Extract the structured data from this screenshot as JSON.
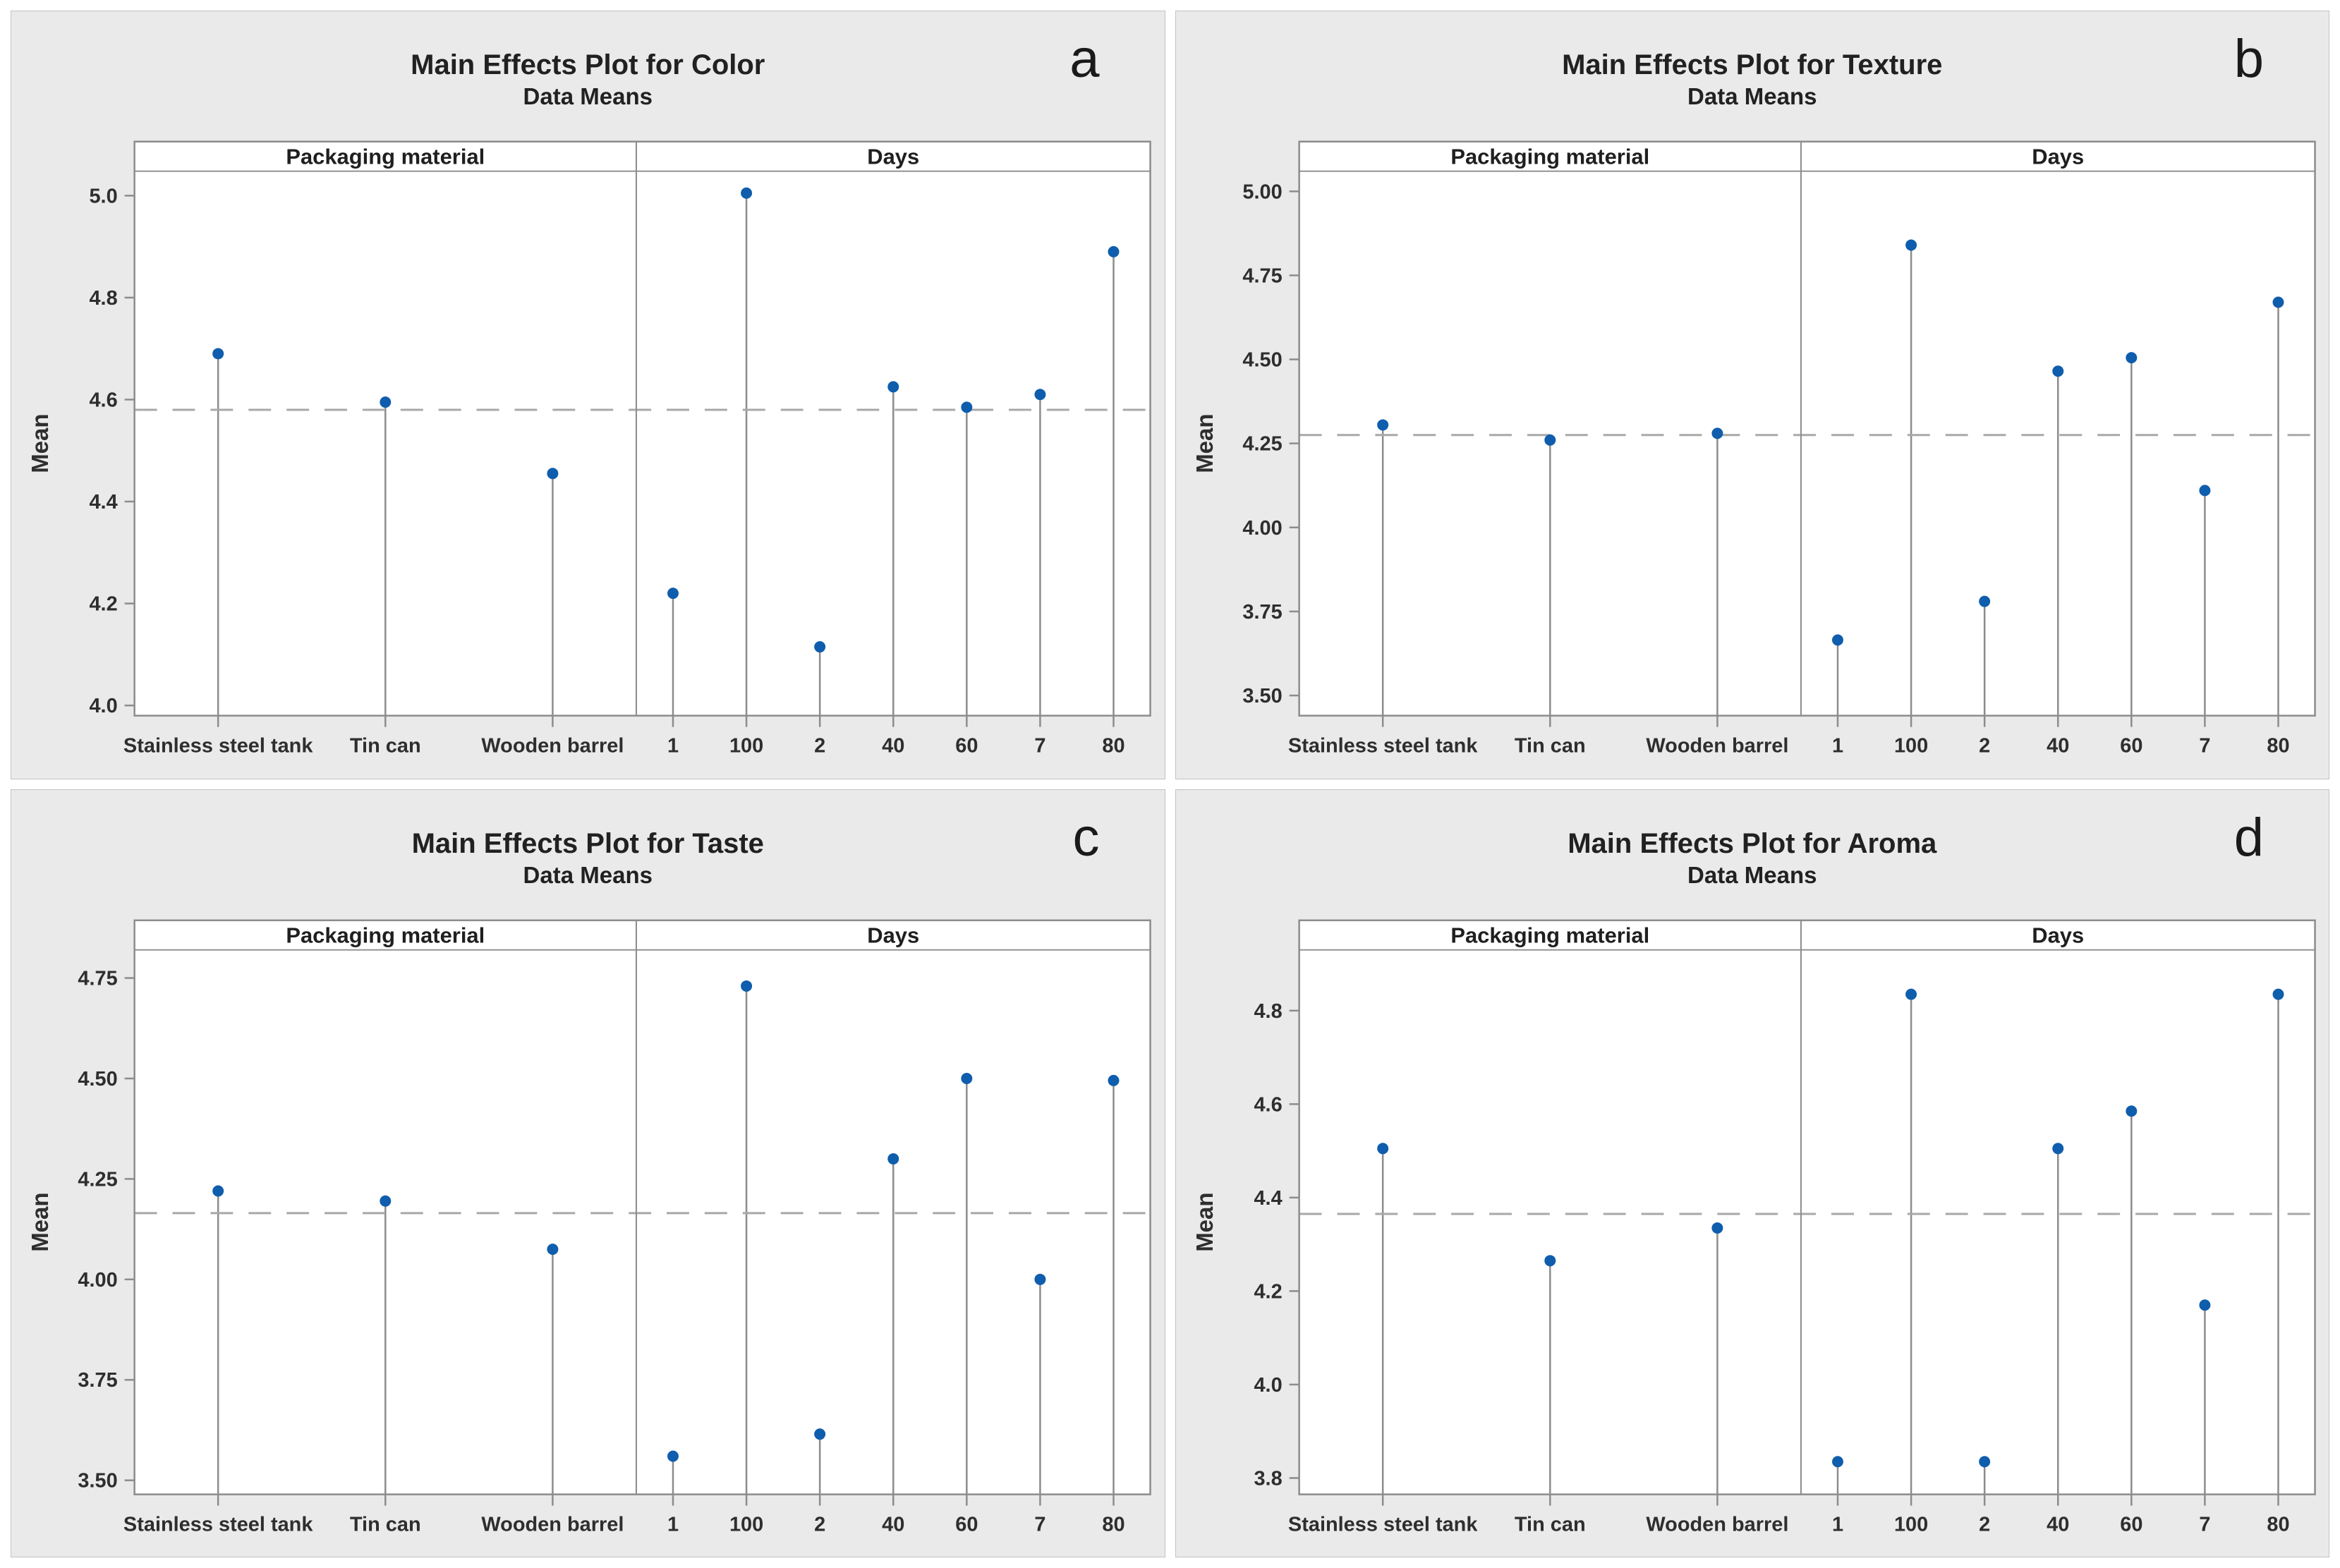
{
  "figure": {
    "description": "Main effects plots (data means) for sensory attributes by packaging material and storage days",
    "ylabel": "Mean",
    "panel_headers": [
      "Packaging material",
      "Days"
    ],
    "packaging_categories": [
      "Stainless steel tank",
      "Tin can",
      "Wooden barrel"
    ],
    "days_categories": [
      "1",
      "100",
      "2",
      "40",
      "60",
      "7",
      "80"
    ],
    "style": {
      "marker_color": "#0f5dad",
      "stem_color": "#8c8c8c",
      "border_color": "#8c8c8c",
      "dash_color": "#a8a8a8",
      "plot_bg": "#ffffff",
      "panel_bg": "#eaeaea",
      "text_color": "#212121"
    }
  },
  "chart_data": [
    {
      "letter": "a",
      "title": "Main Effects Plot for Color",
      "subtitle": "Data Means",
      "type": "lollipop",
      "ylabel": "Mean",
      "grid": false,
      "legend": "none",
      "overall_mean": 4.58,
      "ylim": [
        3.98,
        5.048
      ],
      "yticks": [
        4.0,
        4.2,
        4.4,
        4.6,
        4.8,
        5.0
      ],
      "ytick_labels": [
        "4.0",
        "4.2",
        "4.4",
        "4.6",
        "4.8",
        "5.0"
      ],
      "panels": [
        {
          "label": "Packaging material",
          "categories": [
            "Stainless steel tank",
            "Tin can",
            "Wooden barrel"
          ],
          "values": [
            4.69,
            4.595,
            4.455
          ]
        },
        {
          "label": "Days",
          "categories": [
            "1",
            "100",
            "2",
            "40",
            "60",
            "7",
            "80"
          ],
          "values": [
            4.22,
            5.005,
            4.115,
            4.625,
            4.585,
            4.61,
            4.89
          ]
        }
      ]
    },
    {
      "letter": "b",
      "title": "Main Effects Plot for Texture",
      "subtitle": "Data Means",
      "type": "lollipop",
      "ylabel": "Mean",
      "grid": false,
      "legend": "none",
      "overall_mean": 4.275,
      "ylim": [
        3.44,
        5.06
      ],
      "yticks": [
        3.5,
        3.75,
        4.0,
        4.25,
        4.5,
        4.75,
        5.0
      ],
      "ytick_labels": [
        "3.50",
        "3.75",
        "4.00",
        "4.25",
        "4.50",
        "4.75",
        "5.00"
      ],
      "panels": [
        {
          "label": "Packaging material",
          "categories": [
            "Stainless steel tank",
            "Tin can",
            "Wooden barrel"
          ],
          "values": [
            4.305,
            4.26,
            4.28
          ]
        },
        {
          "label": "Days",
          "categories": [
            "1",
            "100",
            "2",
            "40",
            "60",
            "7",
            "80"
          ],
          "values": [
            3.665,
            4.84,
            3.78,
            4.465,
            4.505,
            4.11,
            4.67
          ]
        }
      ]
    },
    {
      "letter": "c",
      "title": "Main Effects Plot for Taste",
      "subtitle": "Data Means",
      "type": "lollipop",
      "ylabel": "Mean",
      "grid": false,
      "legend": "none",
      "overall_mean": 4.165,
      "ylim": [
        3.465,
        4.82
      ],
      "yticks": [
        3.5,
        3.75,
        4.0,
        4.25,
        4.5,
        4.75
      ],
      "ytick_labels": [
        "3.50",
        "3.75",
        "4.00",
        "4.25",
        "4.50",
        "4.75"
      ],
      "panels": [
        {
          "label": "Packaging material",
          "categories": [
            "Stainless steel tank",
            "Tin can",
            "Wooden barrel"
          ],
          "values": [
            4.22,
            4.195,
            4.075
          ]
        },
        {
          "label": "Days",
          "categories": [
            "1",
            "100",
            "2",
            "40",
            "60",
            "7",
            "80"
          ],
          "values": [
            3.56,
            4.73,
            3.615,
            4.3,
            4.5,
            4.0,
            4.495
          ]
        }
      ]
    },
    {
      "letter": "d",
      "title": "Main Effects Plot for Aroma",
      "subtitle": "Data Means",
      "type": "lollipop",
      "ylabel": "Mean",
      "grid": false,
      "legend": "none",
      "overall_mean": 4.365,
      "ylim": [
        3.765,
        4.93
      ],
      "yticks": [
        3.8,
        4.0,
        4.2,
        4.4,
        4.6,
        4.8
      ],
      "ytick_labels": [
        "3.8",
        "4.0",
        "4.2",
        "4.4",
        "4.6",
        "4.8"
      ],
      "panels": [
        {
          "label": "Packaging material",
          "categories": [
            "Stainless steel tank",
            "Tin can",
            "Wooden barrel"
          ],
          "values": [
            4.505,
            4.265,
            4.335
          ]
        },
        {
          "label": "Days",
          "categories": [
            "1",
            "100",
            "2",
            "40",
            "60",
            "7",
            "80"
          ],
          "values": [
            3.835,
            4.835,
            3.835,
            4.505,
            4.585,
            4.17,
            4.835
          ]
        }
      ]
    }
  ]
}
